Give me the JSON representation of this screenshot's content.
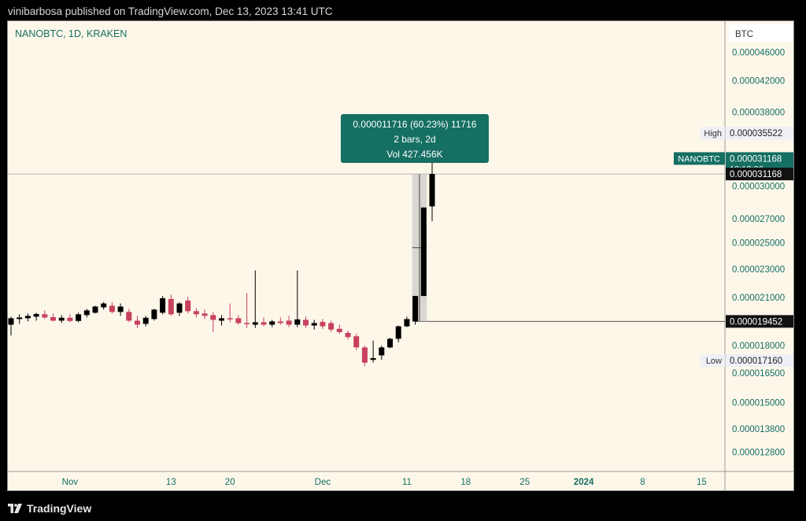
{
  "header": {
    "published": "vinibarbosa published on TradingView.com, Dec 13, 2023 13:41 UTC"
  },
  "footer": {
    "brand": "TradingView",
    "logo_icon": "tradingview-logo-icon"
  },
  "colors": {
    "background": "#fdf7ea",
    "up": "#000000",
    "down": "#c8415e",
    "accent": "#156f63",
    "axis_text": "#156f63",
    "grid_line": "#9a9a9a"
  },
  "chart_data": {
    "type": "candlestick",
    "symbol_label": "NANOBTC, 1D, KRAKEN",
    "currency": "BTC",
    "y_scale": "log",
    "ylim": [
      1.18e-05,
      5.08e-05
    ],
    "y_ticks": [
      "0.000046000",
      "0.000042000",
      "0.000038000",
      "0.000030000",
      "0.000027000",
      "0.000025000",
      "0.000023000",
      "0.000021000",
      "0.000018000",
      "0.000016500",
      "0.000015000",
      "0.000013800",
      "0.000012800"
    ],
    "x_ticks": [
      {
        "label": "Nov",
        "date": "2023-11-01",
        "bold": false
      },
      {
        "label": "13",
        "date": "2023-11-13",
        "bold": false
      },
      {
        "label": "20",
        "date": "2023-11-20",
        "bold": false
      },
      {
        "label": "Dec",
        "date": "2023-12-01",
        "bold": false
      },
      {
        "label": "11",
        "date": "2023-12-11",
        "bold": false
      },
      {
        "label": "18",
        "date": "2023-12-18",
        "bold": false
      },
      {
        "label": "25",
        "date": "2023-12-25",
        "bold": false
      },
      {
        "label": "2024",
        "date": "2024-01-01",
        "bold": true
      },
      {
        "label": "8",
        "date": "2024-01-08",
        "bold": false
      },
      {
        "label": "15",
        "date": "2024-01-15",
        "bold": false
      }
    ],
    "xlim": [
      "2023-10-25",
      "2024-01-18"
    ],
    "candles": [
      {
        "date": "2023-10-25",
        "o": 1.925e-05,
        "h": 1.975e-05,
        "l": 1.86e-05,
        "c": 1.965e-05
      },
      {
        "date": "2023-10-26",
        "o": 1.96e-05,
        "h": 1.99e-05,
        "l": 1.93e-05,
        "c": 1.97e-05
      },
      {
        "date": "2023-10-27",
        "o": 1.965e-05,
        "h": 1.995e-05,
        "l": 1.945e-05,
        "c": 1.98e-05
      },
      {
        "date": "2023-10-28",
        "o": 1.975e-05,
        "h": 2e-05,
        "l": 1.95e-05,
        "c": 1.992e-05
      },
      {
        "date": "2023-10-29",
        "o": 1.99e-05,
        "h": 2.015e-05,
        "l": 1.96e-05,
        "c": 1.97e-05
      },
      {
        "date": "2023-10-30",
        "o": 1.972e-05,
        "h": 1.995e-05,
        "l": 1.945e-05,
        "c": 1.95e-05
      },
      {
        "date": "2023-10-31",
        "o": 1.95e-05,
        "h": 1.985e-05,
        "l": 1.935e-05,
        "c": 1.968e-05
      },
      {
        "date": "2023-11-01",
        "o": 1.968e-05,
        "h": 1.99e-05,
        "l": 1.94e-05,
        "c": 1.948e-05
      },
      {
        "date": "2023-11-02",
        "o": 1.948e-05,
        "h": 2e-05,
        "l": 1.94e-05,
        "c": 1.99e-05
      },
      {
        "date": "2023-11-03",
        "o": 1.985e-05,
        "h": 2.025e-05,
        "l": 1.97e-05,
        "c": 2.015e-05
      },
      {
        "date": "2023-11-04",
        "o": 2e-05,
        "h": 2.045e-05,
        "l": 1.995e-05,
        "c": 2.04e-05
      },
      {
        "date": "2023-11-05",
        "o": 2.035e-05,
        "h": 2.07e-05,
        "l": 2.02e-05,
        "c": 2.06e-05
      },
      {
        "date": "2023-11-06",
        "o": 2.045e-05,
        "h": 2.07e-05,
        "l": 1.995e-05,
        "c": 2.005e-05
      },
      {
        "date": "2023-11-07",
        "o": 2.005e-05,
        "h": 2.06e-05,
        "l": 1.98e-05,
        "c": 2.04e-05
      },
      {
        "date": "2023-11-08",
        "o": 2.005e-05,
        "h": 2.025e-05,
        "l": 1.94e-05,
        "c": 1.95e-05
      },
      {
        "date": "2023-11-09",
        "o": 1.95e-05,
        "h": 1.98e-05,
        "l": 1.905e-05,
        "c": 1.925e-05
      },
      {
        "date": "2023-11-10",
        "o": 1.93e-05,
        "h": 1.98e-05,
        "l": 1.915e-05,
        "c": 1.968e-05
      },
      {
        "date": "2023-11-11",
        "o": 1.96e-05,
        "h": 2.025e-05,
        "l": 1.95e-05,
        "c": 2.02e-05
      },
      {
        "date": "2023-11-12",
        "o": 2e-05,
        "h": 2.11e-05,
        "l": 1.99e-05,
        "c": 2.095e-05
      },
      {
        "date": "2023-11-13",
        "o": 2.09e-05,
        "h": 2.12e-05,
        "l": 1.98e-05,
        "c": 1.99e-05
      },
      {
        "date": "2023-11-14",
        "o": 2e-05,
        "h": 2.07e-05,
        "l": 1.98e-05,
        "c": 2.06e-05
      },
      {
        "date": "2023-11-15",
        "o": 2.08e-05,
        "h": 2.105e-05,
        "l": 1.995e-05,
        "c": 2.01e-05
      },
      {
        "date": "2023-11-16",
        "o": 2.01e-05,
        "h": 2.03e-05,
        "l": 1.97e-05,
        "c": 1.99e-05
      },
      {
        "date": "2023-11-17",
        "o": 1.995e-05,
        "h": 2.02e-05,
        "l": 1.96e-05,
        "c": 1.98e-05
      },
      {
        "date": "2023-11-18",
        "o": 1.985e-05,
        "h": 2.005e-05,
        "l": 1.88e-05,
        "c": 1.955e-05
      },
      {
        "date": "2023-11-19",
        "o": 1.95e-05,
        "h": 1.985e-05,
        "l": 1.92e-05,
        "c": 1.965e-05
      },
      {
        "date": "2023-11-20",
        "o": 1.965e-05,
        "h": 2.06e-05,
        "l": 1.94e-05,
        "c": 1.96e-05
      },
      {
        "date": "2023-11-21",
        "o": 1.965e-05,
        "h": 1.985e-05,
        "l": 1.925e-05,
        "c": 1.935e-05
      },
      {
        "date": "2023-11-22",
        "o": 1.935e-05,
        "h": 2.13e-05,
        "l": 1.905e-05,
        "c": 1.928e-05
      },
      {
        "date": "2023-11-23",
        "o": 1.925e-05,
        "h": 2.29e-05,
        "l": 1.905e-05,
        "c": 1.94e-05
      },
      {
        "date": "2023-11-24",
        "o": 1.94e-05,
        "h": 1.97e-05,
        "l": 1.915e-05,
        "c": 1.925e-05
      },
      {
        "date": "2023-11-25",
        "o": 1.925e-05,
        "h": 1.955e-05,
        "l": 1.91e-05,
        "c": 1.945e-05
      },
      {
        "date": "2023-11-26",
        "o": 1.945e-05,
        "h": 1.97e-05,
        "l": 1.925e-05,
        "c": 1.935e-05
      },
      {
        "date": "2023-11-27",
        "o": 1.95e-05,
        "h": 1.98e-05,
        "l": 1.91e-05,
        "c": 1.925e-05
      },
      {
        "date": "2023-11-28",
        "o": 1.925e-05,
        "h": 2.29e-05,
        "l": 1.91e-05,
        "c": 1.958e-05
      },
      {
        "date": "2023-11-29",
        "o": 1.955e-05,
        "h": 1.975e-05,
        "l": 1.905e-05,
        "c": 1.92e-05
      },
      {
        "date": "2023-11-30",
        "o": 1.92e-05,
        "h": 1.955e-05,
        "l": 1.895e-05,
        "c": 1.935e-05
      },
      {
        "date": "2023-12-01",
        "o": 1.942e-05,
        "h": 1.96e-05,
        "l": 1.9e-05,
        "c": 1.915e-05
      },
      {
        "date": "2023-12-02",
        "o": 1.935e-05,
        "h": 1.95e-05,
        "l": 1.88e-05,
        "c": 1.895e-05
      },
      {
        "date": "2023-12-03",
        "o": 1.9e-05,
        "h": 1.925e-05,
        "l": 1.87e-05,
        "c": 1.88e-05
      },
      {
        "date": "2023-12-04",
        "o": 1.875e-05,
        "h": 1.89e-05,
        "l": 1.835e-05,
        "c": 1.85e-05
      },
      {
        "date": "2023-12-05",
        "o": 1.855e-05,
        "h": 1.87e-05,
        "l": 1.775e-05,
        "c": 1.79e-05
      },
      {
        "date": "2023-12-06",
        "o": 1.79e-05,
        "h": 1.8e-05,
        "l": 1.685e-05,
        "c": 1.705e-05
      },
      {
        "date": "2023-12-07",
        "o": 1.72e-05,
        "h": 1.83e-05,
        "l": 1.705e-05,
        "c": 1.73e-05
      },
      {
        "date": "2023-12-08",
        "o": 1.745e-05,
        "h": 1.8e-05,
        "l": 1.72e-05,
        "c": 1.79e-05
      },
      {
        "date": "2023-12-09",
        "o": 1.79e-05,
        "h": 1.845e-05,
        "l": 1.785e-05,
        "c": 1.84e-05
      },
      {
        "date": "2023-12-10",
        "o": 1.84e-05,
        "h": 1.92e-05,
        "l": 1.82e-05,
        "c": 1.915e-05
      },
      {
        "date": "2023-12-11",
        "o": 1.915e-05,
        "h": 1.975e-05,
        "l": 1.91e-05,
        "c": 1.96e-05
      },
      {
        "date": "2023-12-12",
        "o": 1.945e-05,
        "h": 2.11e-05,
        "l": 1.925e-05,
        "c": 2.11e-05
      },
      {
        "date": "2023-12-13",
        "o": 2.11e-05,
        "h": 2.8e-05,
        "l": 2.11e-05,
        "c": 2.8e-05
      },
      {
        "date": "2023-12-14",
        "o": 2.81e-05,
        "h": 3.55e-05,
        "l": 2.68e-05,
        "c": 3.117e-05
      }
    ],
    "annotations": {
      "measure_box": {
        "from_date": "2023-12-12",
        "to_date": "2023-12-13",
        "from_price": 1.9452e-05,
        "to_price": 3.1168e-05,
        "lines": [
          "0.000011716 (60.23%) 11716",
          "2 bars, 2d",
          "Vol 427.456K"
        ]
      },
      "price_labels": [
        {
          "name": "high",
          "side_label": "High",
          "value": "0.000035522",
          "price": 3.5522e-05
        },
        {
          "name": "low",
          "side_label": "Low",
          "value": "0.000017160",
          "price": 1.716e-05
        }
      ],
      "last_price": {
        "symbol": "NANOBTC",
        "value": "0.000031168",
        "countdown": "10:18:06",
        "price": 3.275e-05
      },
      "horizontal_lines": [
        {
          "name": "upper",
          "value": "0.000031168",
          "price": 3.1168e-05
        },
        {
          "name": "lower",
          "value": "0.000019452",
          "price": 1.9452e-05
        }
      ]
    }
  }
}
